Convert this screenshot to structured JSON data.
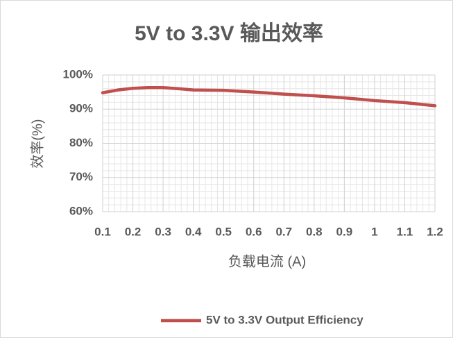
{
  "chart_data": {
    "type": "line",
    "title": "5V to 3.3V 输出效率",
    "x_label": "负载电流 (A)",
    "y_label": "效率(%)",
    "x": [
      0.1,
      0.15,
      0.2,
      0.25,
      0.3,
      0.35,
      0.4,
      0.5,
      0.6,
      0.7,
      0.8,
      0.9,
      1.0,
      1.1,
      1.2
    ],
    "series": [
      {
        "name": "5V to 3.3V Output Efficiency",
        "color": "#c0504d",
        "values": [
          94.8,
          95.6,
          96.1,
          96.3,
          96.3,
          96.0,
          95.6,
          95.5,
          95.0,
          94.4,
          93.9,
          93.3,
          92.5,
          91.9,
          91.0
        ]
      }
    ],
    "xlim": [
      0.1,
      1.2
    ],
    "xticks": [
      0.1,
      0.2,
      0.3,
      0.4,
      0.5,
      0.6,
      0.7,
      0.8,
      0.9,
      1,
      1.1,
      1.2
    ],
    "ylim": [
      60,
      100
    ],
    "yticks": [
      {
        "value": 60,
        "label": "60%"
      },
      {
        "value": 70,
        "label": "70%"
      },
      {
        "value": 80,
        "label": "80%"
      },
      {
        "value": 90,
        "label": "90%"
      },
      {
        "value": 100,
        "label": "100%"
      }
    ],
    "grid": true,
    "minor_grid": true,
    "legend": "bottom"
  }
}
